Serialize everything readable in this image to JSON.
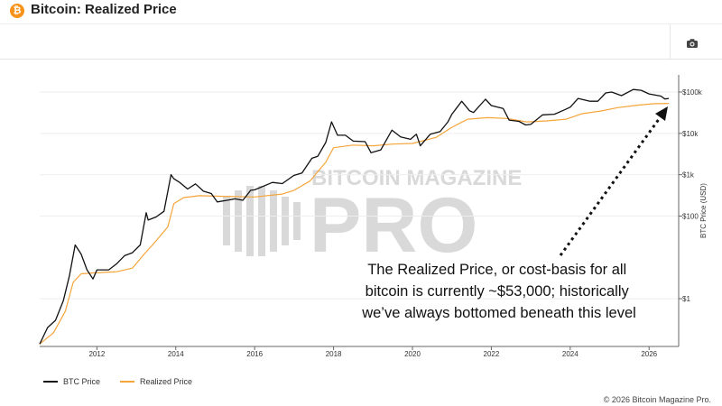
{
  "header": {
    "title": "Bitcoin: Realized Price",
    "badge": "₿"
  },
  "toolbar": {
    "icon": "camera-icon"
  },
  "colors": {
    "btc": "#111111",
    "realized": "#f5a53a",
    "watermark": "#d9d9d9",
    "axis": "#444444"
  },
  "watermark": {
    "line1": "BITCOIN MAGAZINE",
    "line2": "PRO"
  },
  "annotation": {
    "lines": [
      "The Realized Price, or cost-basis for all",
      "bitcoin is currently ~$53,000; historically",
      "we’ve always bottomed beneath this level"
    ]
  },
  "copyright": "© 2026 Bitcoin Magazine Pro.",
  "chart_data": {
    "type": "line",
    "title": "Bitcoin: Realized Price",
    "ylabel": "BTC Price (USD)",
    "yscale": "log",
    "x_ticks": [
      "2012",
      "2014",
      "2016",
      "2018",
      "2020",
      "2022",
      "2024",
      "2026"
    ],
    "y_ticks": [
      {
        "value": 1,
        "label": "$1"
      },
      {
        "value": 100,
        "label": "$100"
      },
      {
        "value": 1000,
        "label": "$1k"
      },
      {
        "value": 10000,
        "label": "$10k"
      },
      {
        "value": 100000,
        "label": "$100k"
      }
    ],
    "xlim": [
      2010.55,
      2026.75
    ],
    "ylim": [
      0.07,
      260000
    ],
    "grid": "horizontal",
    "legend_position": "bottom-left",
    "series": [
      {
        "name": "BTC Price",
        "color": "#111111",
        "points": [
          [
            2010.55,
            0.08
          ],
          [
            2010.75,
            0.2
          ],
          [
            2010.95,
            0.3
          ],
          [
            2011.15,
            0.9
          ],
          [
            2011.3,
            3.5
          ],
          [
            2011.45,
            20
          ],
          [
            2011.6,
            12
          ],
          [
            2011.75,
            5
          ],
          [
            2011.9,
            3
          ],
          [
            2012.0,
            5
          ],
          [
            2012.3,
            5
          ],
          [
            2012.5,
            7
          ],
          [
            2012.7,
            11
          ],
          [
            2012.9,
            13
          ],
          [
            2013.1,
            20
          ],
          [
            2013.25,
            120
          ],
          [
            2013.3,
            80
          ],
          [
            2013.5,
            95
          ],
          [
            2013.7,
            130
          ],
          [
            2013.88,
            1000
          ],
          [
            2013.95,
            800
          ],
          [
            2014.1,
            650
          ],
          [
            2014.3,
            450
          ],
          [
            2014.5,
            600
          ],
          [
            2014.7,
            400
          ],
          [
            2014.9,
            350
          ],
          [
            2015.05,
            220
          ],
          [
            2015.3,
            240
          ],
          [
            2015.5,
            260
          ],
          [
            2015.7,
            240
          ],
          [
            2015.9,
            420
          ],
          [
            2016.0,
            430
          ],
          [
            2016.45,
            650
          ],
          [
            2016.7,
            610
          ],
          [
            2016.99,
            960
          ],
          [
            2017.2,
            1100
          ],
          [
            2017.45,
            2500
          ],
          [
            2017.6,
            2800
          ],
          [
            2017.8,
            6000
          ],
          [
            2017.95,
            19000
          ],
          [
            2018.1,
            9000
          ],
          [
            2018.3,
            9000
          ],
          [
            2018.5,
            6500
          ],
          [
            2018.8,
            6300
          ],
          [
            2018.95,
            3400
          ],
          [
            2019.2,
            4000
          ],
          [
            2019.48,
            12000
          ],
          [
            2019.7,
            8200
          ],
          [
            2019.95,
            7200
          ],
          [
            2020.1,
            9500
          ],
          [
            2020.2,
            5000
          ],
          [
            2020.45,
            9500
          ],
          [
            2020.7,
            11000
          ],
          [
            2020.9,
            19000
          ],
          [
            2021.0,
            29000
          ],
          [
            2021.25,
            60000
          ],
          [
            2021.45,
            35000
          ],
          [
            2021.55,
            32000
          ],
          [
            2021.85,
            67000
          ],
          [
            2022.0,
            47000
          ],
          [
            2022.3,
            40000
          ],
          [
            2022.45,
            21000
          ],
          [
            2022.7,
            19500
          ],
          [
            2022.87,
            16000
          ],
          [
            2023.0,
            16500
          ],
          [
            2023.3,
            28000
          ],
          [
            2023.6,
            29000
          ],
          [
            2023.85,
            37000
          ],
          [
            2024.0,
            43000
          ],
          [
            2024.2,
            70000
          ],
          [
            2024.5,
            60000
          ],
          [
            2024.7,
            60000
          ],
          [
            2024.9,
            95000
          ],
          [
            2025.05,
            100000
          ],
          [
            2025.3,
            82000
          ],
          [
            2025.6,
            115000
          ],
          [
            2025.8,
            110000
          ],
          [
            2026.0,
            90000
          ],
          [
            2026.3,
            80000
          ],
          [
            2026.4,
            68000
          ],
          [
            2026.5,
            70000
          ]
        ]
      },
      {
        "name": "Realized Price",
        "color": "#f5a53a",
        "points": [
          [
            2010.55,
            0.08
          ],
          [
            2010.9,
            0.15
          ],
          [
            2011.2,
            0.5
          ],
          [
            2011.4,
            2.5
          ],
          [
            2011.6,
            4
          ],
          [
            2011.9,
            4.2
          ],
          [
            2012.5,
            4.5
          ],
          [
            2012.9,
            5.5
          ],
          [
            2013.2,
            12
          ],
          [
            2013.5,
            25
          ],
          [
            2013.8,
            55
          ],
          [
            2013.95,
            200
          ],
          [
            2014.2,
            280
          ],
          [
            2014.6,
            310
          ],
          [
            2015.2,
            300
          ],
          [
            2016.0,
            290
          ],
          [
            2016.7,
            340
          ],
          [
            2017.0,
            420
          ],
          [
            2017.4,
            700
          ],
          [
            2017.8,
            2000
          ],
          [
            2018.0,
            4500
          ],
          [
            2018.5,
            5200
          ],
          [
            2019.0,
            5000
          ],
          [
            2019.5,
            5500
          ],
          [
            2020.0,
            5700
          ],
          [
            2020.6,
            8000
          ],
          [
            2021.0,
            14000
          ],
          [
            2021.4,
            22000
          ],
          [
            2021.9,
            24000
          ],
          [
            2022.4,
            23000
          ],
          [
            2022.9,
            19000
          ],
          [
            2023.4,
            20000
          ],
          [
            2023.9,
            22000
          ],
          [
            2024.3,
            30000
          ],
          [
            2024.8,
            35000
          ],
          [
            2025.2,
            42000
          ],
          [
            2025.7,
            48000
          ],
          [
            2026.1,
            52000
          ],
          [
            2026.5,
            53000
          ]
        ]
      }
    ]
  }
}
